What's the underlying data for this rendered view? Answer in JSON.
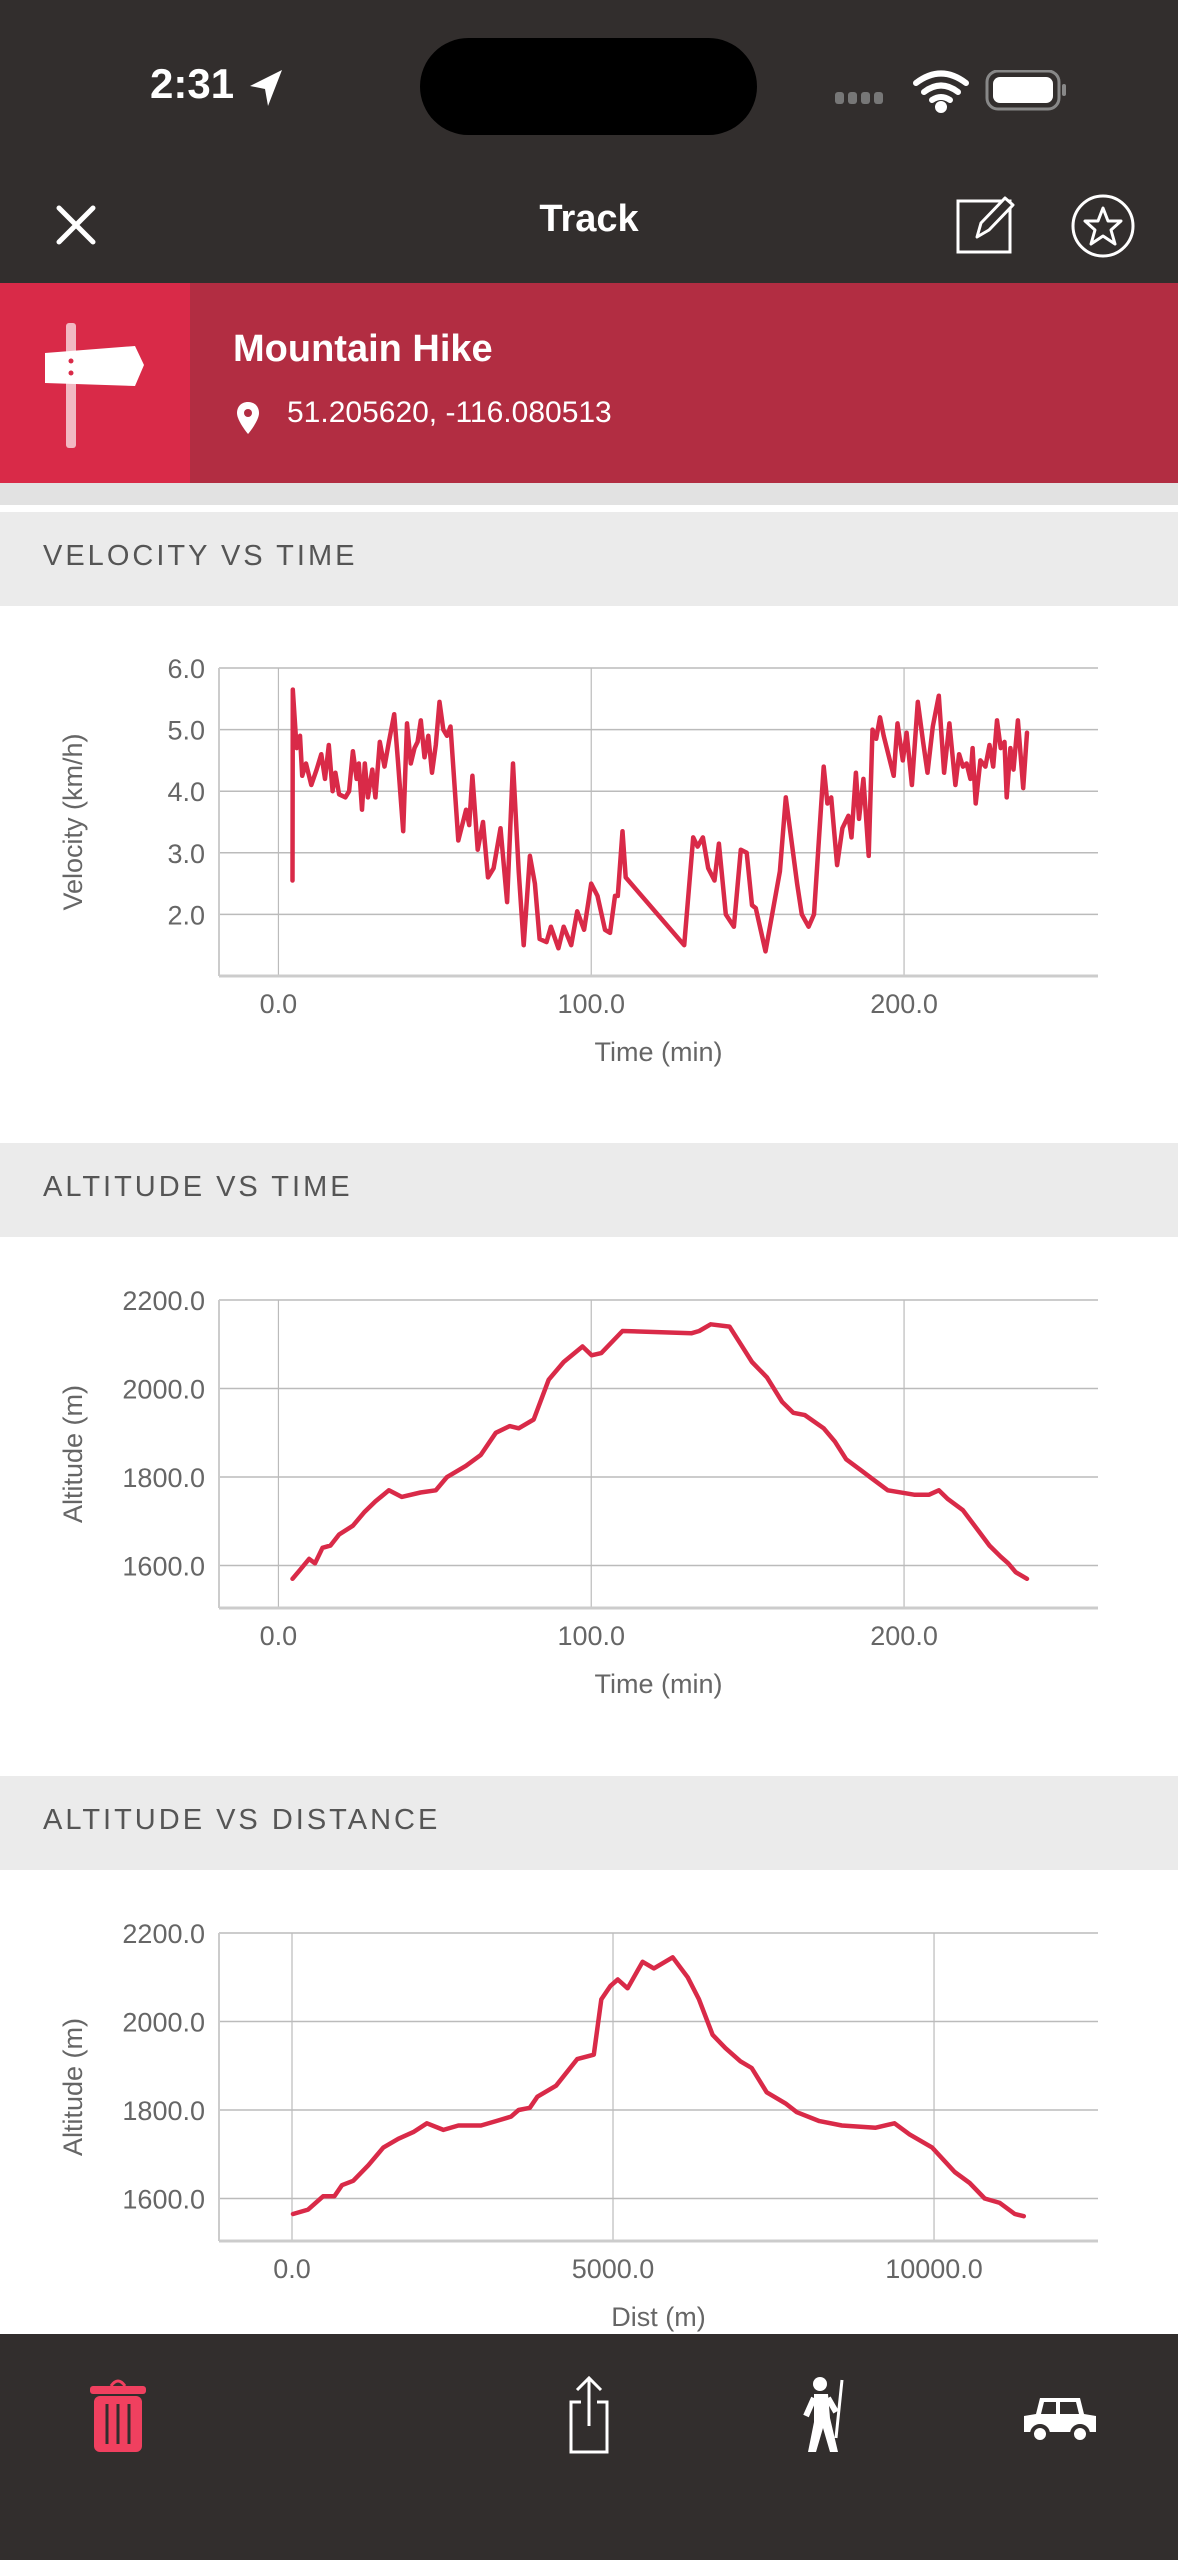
{
  "status_bar": {
    "time": "2:31"
  },
  "nav": {
    "title": "Track",
    "close_icon": "close-icon",
    "edit_icon": "edit-icon",
    "favorite_icon": "star-icon"
  },
  "track": {
    "name": "Mountain Hike",
    "coordinates": "51.205620, -116.080513"
  },
  "colors": {
    "accent": "#d92a48",
    "banner": "#b22d42",
    "dark": "#322e2d",
    "line": "#d92a48"
  },
  "sections": [
    "VELOCITY VS TIME",
    "ALTITUDE VS TIME",
    "ALTITUDE VS DISTANCE"
  ],
  "bottom_bar": {
    "icons": [
      "trash-icon",
      "share-icon",
      "hiker-icon",
      "car-icon"
    ]
  },
  "chart_data": [
    {
      "type": "line",
      "title": "VELOCITY VS TIME",
      "xlabel": "Time (min)",
      "ylabel": "Velocity (km/h)",
      "xlim": [
        -19,
        262
      ],
      "ylim": [
        1.0,
        6.0
      ],
      "xticks": [
        0,
        100,
        200
      ],
      "xtick_labels": [
        "0.0",
        "100.0",
        "200.0"
      ],
      "yticks": [
        2,
        3,
        4,
        5,
        6
      ],
      "ytick_labels": [
        "2.0",
        "3.0",
        "4.0",
        "5.0",
        "6.0"
      ],
      "grid": true,
      "points": [
        [
          4.5,
          2.55
        ],
        [
          4.6,
          5.65
        ],
        [
          5.8,
          4.7
        ],
        [
          6.9,
          4.9
        ],
        [
          7.6,
          4.25
        ],
        [
          8.8,
          4.45
        ],
        [
          10.5,
          4.1
        ],
        [
          12.2,
          4.35
        ],
        [
          13.7,
          4.6
        ],
        [
          14.9,
          4.2
        ],
        [
          16.1,
          4.75
        ],
        [
          17.3,
          4.0
        ],
        [
          18.2,
          4.3
        ],
        [
          19.4,
          3.95
        ],
        [
          21.4,
          3.9
        ],
        [
          22.6,
          4.0
        ],
        [
          23.8,
          4.65
        ],
        [
          25,
          4.2
        ],
        [
          25.7,
          4.45
        ],
        [
          26.7,
          3.7
        ],
        [
          27.6,
          4.45
        ],
        [
          28.6,
          3.9
        ],
        [
          30,
          4.35
        ],
        [
          31,
          3.9
        ],
        [
          32.4,
          4.8
        ],
        [
          33.9,
          4.4
        ],
        [
          35.3,
          4.8
        ],
        [
          37,
          5.25
        ],
        [
          38.2,
          4.5
        ],
        [
          39.9,
          3.35
        ],
        [
          41.1,
          5.1
        ],
        [
          42.3,
          4.45
        ],
        [
          43.5,
          4.7
        ],
        [
          44.5,
          4.8
        ],
        [
          45.5,
          5.15
        ],
        [
          46.7,
          4.55
        ],
        [
          47.9,
          4.9
        ],
        [
          49.1,
          4.3
        ],
        [
          50.3,
          4.75
        ],
        [
          51.5,
          5.45
        ],
        [
          52.7,
          5.0
        ],
        [
          53.9,
          4.9
        ],
        [
          55,
          5.05
        ],
        [
          57.5,
          3.2
        ],
        [
          60,
          3.7
        ],
        [
          61,
          3.45
        ],
        [
          62,
          4.25
        ],
        [
          63.7,
          3.05
        ],
        [
          65.4,
          3.5
        ],
        [
          67,
          2.6
        ],
        [
          68.8,
          2.75
        ],
        [
          71,
          3.4
        ],
        [
          73.1,
          2.2
        ],
        [
          75,
          4.45
        ],
        [
          76.8,
          2.7
        ],
        [
          78.4,
          1.5
        ],
        [
          80.4,
          2.95
        ],
        [
          82,
          2.5
        ],
        [
          83.5,
          1.6
        ],
        [
          85.7,
          1.55
        ],
        [
          87.1,
          1.8
        ],
        [
          89.5,
          1.45
        ],
        [
          91.2,
          1.8
        ],
        [
          93.6,
          1.5
        ],
        [
          95.5,
          2.05
        ],
        [
          97.7,
          1.75
        ],
        [
          100,
          2.5
        ],
        [
          102,
          2.3
        ],
        [
          104.4,
          1.75
        ],
        [
          106,
          1.7
        ],
        [
          107.6,
          2.3
        ],
        [
          108.5,
          2.3
        ],
        [
          110,
          3.35
        ],
        [
          111,
          2.6
        ],
        [
          129.7,
          1.5
        ],
        [
          132.6,
          3.25
        ],
        [
          134,
          3.1
        ],
        [
          135.7,
          3.25
        ],
        [
          137.4,
          2.75
        ],
        [
          139.4,
          2.55
        ],
        [
          140.8,
          3.15
        ],
        [
          143,
          2.0
        ],
        [
          145.6,
          1.8
        ],
        [
          147.8,
          3.05
        ],
        [
          149.7,
          3.0
        ],
        [
          151.4,
          2.15
        ],
        [
          152.6,
          2.1
        ],
        [
          155.7,
          1.4
        ],
        [
          160.3,
          2.7
        ],
        [
          162.2,
          3.9
        ],
        [
          165.8,
          2.5
        ],
        [
          167.3,
          2.0
        ],
        [
          169.5,
          1.8
        ],
        [
          171.2,
          2.0
        ],
        [
          174.3,
          4.4
        ],
        [
          175.5,
          3.8
        ],
        [
          176.7,
          3.9
        ],
        [
          178.6,
          2.8
        ],
        [
          180.3,
          3.4
        ],
        [
          182.2,
          3.6
        ],
        [
          183.2,
          3.25
        ],
        [
          184.6,
          4.3
        ],
        [
          185.6,
          3.55
        ],
        [
          187,
          4.2
        ],
        [
          188.7,
          2.95
        ],
        [
          189.9,
          5.0
        ],
        [
          191.1,
          4.85
        ],
        [
          192.3,
          5.2
        ],
        [
          193.5,
          4.9
        ],
        [
          196.7,
          4.25
        ],
        [
          197.9,
          5.1
        ],
        [
          199.6,
          4.5
        ],
        [
          200.8,
          4.95
        ],
        [
          202.5,
          4.1
        ],
        [
          204.4,
          5.45
        ],
        [
          206.1,
          4.8
        ],
        [
          207.5,
          4.3
        ],
        [
          209.2,
          5.05
        ],
        [
          211.1,
          5.55
        ],
        [
          212.8,
          4.3
        ],
        [
          214.5,
          5.1
        ],
        [
          216.4,
          4.1
        ],
        [
          217.6,
          4.6
        ],
        [
          218.8,
          4.4
        ],
        [
          220,
          4.45
        ],
        [
          221.2,
          4.2
        ],
        [
          221.9,
          4.7
        ],
        [
          222.9,
          3.8
        ],
        [
          224.4,
          4.5
        ],
        [
          226,
          4.4
        ],
        [
          227.3,
          4.75
        ],
        [
          228.5,
          4.4
        ],
        [
          229.7,
          5.15
        ],
        [
          230.9,
          4.7
        ],
        [
          232.1,
          4.8
        ],
        [
          232.8,
          3.9
        ],
        [
          234,
          4.7
        ],
        [
          235,
          4.35
        ],
        [
          236.4,
          5.15
        ],
        [
          238.1,
          4.05
        ],
        [
          239.3,
          4.95
        ]
      ]
    },
    {
      "type": "line",
      "title": "ALTITUDE VS TIME",
      "xlabel": "Time (min)",
      "ylabel": "Altitude (m)",
      "xlim": [
        -19,
        262
      ],
      "ylim": [
        1504,
        2200
      ],
      "xticks": [
        0,
        100,
        200
      ],
      "xtick_labels": [
        "0.0",
        "100.0",
        "200.0"
      ],
      "yticks": [
        1600,
        1800,
        2000,
        2200
      ],
      "ytick_labels": [
        "1600.0",
        "1800.0",
        "2000.0",
        "2200.0"
      ],
      "grid": true,
      "points": [
        [
          4.5,
          1570
        ],
        [
          6.9,
          1590
        ],
        [
          9.8,
          1615
        ],
        [
          11.7,
          1605
        ],
        [
          14.1,
          1640
        ],
        [
          16.6,
          1645
        ],
        [
          19.4,
          1670
        ],
        [
          23.8,
          1690
        ],
        [
          27.4,
          1720
        ],
        [
          31,
          1745
        ],
        [
          35.3,
          1770
        ],
        [
          39.4,
          1755
        ],
        [
          45.4,
          1765
        ],
        [
          50.3,
          1770
        ],
        [
          53.9,
          1800
        ],
        [
          59.9,
          1825
        ],
        [
          64.7,
          1850
        ],
        [
          69.5,
          1900
        ],
        [
          73.9,
          1915
        ],
        [
          76.8,
          1910
        ],
        [
          81.6,
          1930
        ],
        [
          86.4,
          2020
        ],
        [
          91.2,
          2060
        ],
        [
          97.2,
          2095
        ],
        [
          100.1,
          2075
        ],
        [
          103.2,
          2080
        ],
        [
          110,
          2130
        ],
        [
          132.1,
          2125
        ],
        [
          134.5,
          2130
        ],
        [
          138.2,
          2145
        ],
        [
          144.2,
          2140
        ],
        [
          147.8,
          2100
        ],
        [
          151.4,
          2060
        ],
        [
          156.2,
          2025
        ],
        [
          161,
          1970
        ],
        [
          164.6,
          1945
        ],
        [
          168.3,
          1940
        ],
        [
          174.3,
          1910
        ],
        [
          177.9,
          1880
        ],
        [
          181.5,
          1840
        ],
        [
          186.3,
          1815
        ],
        [
          190,
          1795
        ],
        [
          194.8,
          1770
        ],
        [
          203.2,
          1760
        ],
        [
          208,
          1760
        ],
        [
          211.1,
          1770
        ],
        [
          214,
          1750
        ],
        [
          218.8,
          1725
        ],
        [
          223.6,
          1680
        ],
        [
          227.3,
          1645
        ],
        [
          230.9,
          1620
        ],
        [
          233.3,
          1605
        ],
        [
          235.7,
          1585
        ],
        [
          239.3,
          1570
        ]
      ]
    },
    {
      "type": "line",
      "title": "ALTITUDE VS DISTANCE",
      "xlabel": "Dist (m)",
      "ylabel": "Altitude (m)",
      "xlim": [
        -1137,
        12554
      ],
      "ylim": [
        1504,
        2200
      ],
      "xticks": [
        0,
        5000,
        10000
      ],
      "xtick_labels": [
        "0.0",
        "5000.0",
        "10000.0"
      ],
      "yticks": [
        1600,
        1800,
        2000,
        2200
      ],
      "ytick_labels": [
        "1600.0",
        "1800.0",
        "2000.0",
        "2200.0"
      ],
      "grid": true,
      "points": [
        [
          16,
          1565
        ],
        [
          251,
          1575
        ],
        [
          485,
          1605
        ],
        [
          661,
          1605
        ],
        [
          778,
          1630
        ],
        [
          954,
          1640
        ],
        [
          1188,
          1675
        ],
        [
          1422,
          1715
        ],
        [
          1656,
          1735
        ],
        [
          1890,
          1750
        ],
        [
          2101,
          1770
        ],
        [
          2358,
          1755
        ],
        [
          2592,
          1765
        ],
        [
          2944,
          1765
        ],
        [
          3178,
          1775
        ],
        [
          3412,
          1785
        ],
        [
          3529,
          1800
        ],
        [
          3704,
          1805
        ],
        [
          3822,
          1830
        ],
        [
          4114,
          1855
        ],
        [
          4442,
          1915
        ],
        [
          4700,
          1925
        ],
        [
          4817,
          2050
        ],
        [
          4958,
          2080
        ],
        [
          5075,
          2095
        ],
        [
          5227,
          2075
        ],
        [
          5461,
          2135
        ],
        [
          5637,
          2120
        ],
        [
          5930,
          2145
        ],
        [
          6164,
          2100
        ],
        [
          6340,
          2050
        ],
        [
          6551,
          1970
        ],
        [
          6750,
          1940
        ],
        [
          6984,
          1910
        ],
        [
          7160,
          1895
        ],
        [
          7394,
          1840
        ],
        [
          7687,
          1815
        ],
        [
          7863,
          1795
        ],
        [
          8214,
          1775
        ],
        [
          8565,
          1765
        ],
        [
          9092,
          1760
        ],
        [
          9385,
          1770
        ],
        [
          9619,
          1745
        ],
        [
          9971,
          1715
        ],
        [
          10322,
          1660
        ],
        [
          10556,
          1635
        ],
        [
          10790,
          1600
        ],
        [
          11024,
          1590
        ],
        [
          11258,
          1565
        ],
        [
          11398,
          1560
        ]
      ]
    }
  ]
}
